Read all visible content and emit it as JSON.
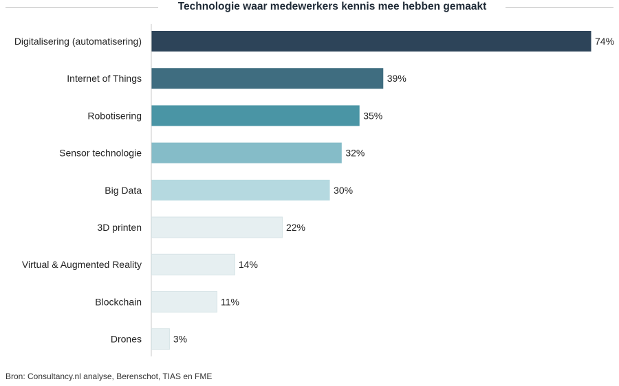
{
  "title": "Technologie waar medewerkers kennis mee hebben gemaakt",
  "source": "Bron: Consultancy.nl analyse, Berenschot, TIAS en FME",
  "chart_data": {
    "type": "bar",
    "orientation": "horizontal",
    "title": "Technologie waar medewerkers kennis mee hebben gemaakt",
    "categories": [
      "Digitalisering (automatisering)",
      "Internet of Things",
      "Robotisering",
      "Sensor technologie",
      "Big Data",
      "3D printen",
      "Virtual & Augmented Reality",
      "Blockchain",
      "Drones"
    ],
    "values": [
      74,
      39,
      35,
      32,
      30,
      22,
      14,
      11,
      3
    ],
    "value_labels": [
      "74%",
      "39%",
      "35%",
      "32%",
      "30%",
      "22%",
      "14%",
      "11%",
      "3%"
    ],
    "unit": "%",
    "colors": [
      "#2d4459",
      "#3f6d80",
      "#4a95a5",
      "#85bcc8",
      "#b5d9e0",
      "#e6eff1",
      "#e6eff1",
      "#e6eff1",
      "#e6eff1"
    ],
    "xlim": [
      0,
      74
    ],
    "grid": false,
    "legend": "none"
  }
}
